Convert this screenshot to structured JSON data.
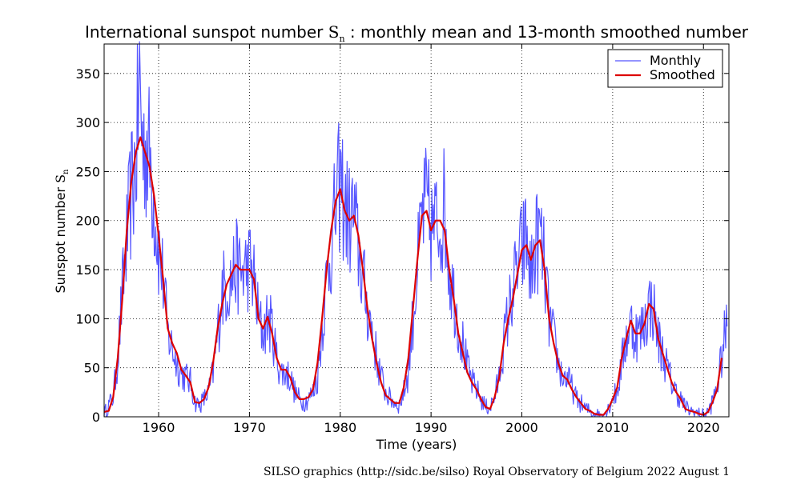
{
  "chart_data": {
    "type": "line",
    "title_main": "International sunspot number ",
    "title_symbol": "S",
    "title_sub": "n",
    "title_rest": " : monthly mean and 13-month smoothed number",
    "xlabel": "Time (years)",
    "ylabel_main": "Sunspot number ",
    "ylabel_symbol": "S",
    "ylabel_sub": "n",
    "xlim": [
      1954,
      2022.8
    ],
    "ylim": [
      0,
      380
    ],
    "xticks": [
      1960,
      1970,
      1980,
      1990,
      2000,
      2010,
      2020
    ],
    "yticks": [
      0,
      50,
      100,
      150,
      200,
      250,
      300,
      350
    ],
    "grid": true,
    "legend_position": "top-right",
    "series": [
      {
        "name": "Monthly",
        "color": "#5555ff",
        "style": "thin-line",
        "knots": [
          [
            1954.0,
            3
          ],
          [
            1954.5,
            12
          ],
          [
            1955.0,
            20
          ],
          [
            1955.5,
            60
          ],
          [
            1956.0,
            125
          ],
          [
            1956.5,
            180
          ],
          [
            1957.0,
            230
          ],
          [
            1957.5,
            260
          ],
          [
            1957.9,
            340
          ],
          [
            1958.3,
            270
          ],
          [
            1958.7,
            280
          ],
          [
            1959.2,
            250
          ],
          [
            1959.6,
            210
          ],
          [
            1960.0,
            170
          ],
          [
            1960.5,
            140
          ],
          [
            1961.0,
            85
          ],
          [
            1961.5,
            70
          ],
          [
            1962.0,
            55
          ],
          [
            1962.5,
            45
          ],
          [
            1963.0,
            40
          ],
          [
            1963.5,
            35
          ],
          [
            1964.0,
            15
          ],
          [
            1964.5,
            12
          ],
          [
            1965.0,
            18
          ],
          [
            1965.5,
            25
          ],
          [
            1966.0,
            45
          ],
          [
            1966.5,
            85
          ],
          [
            1967.0,
            130
          ],
          [
            1967.5,
            135
          ],
          [
            1968.0,
            140
          ],
          [
            1968.5,
            155
          ],
          [
            1969.0,
            145
          ],
          [
            1969.5,
            150
          ],
          [
            1970.0,
            155
          ],
          [
            1970.5,
            140
          ],
          [
            1971.0,
            100
          ],
          [
            1971.5,
            85
          ],
          [
            1972.0,
            100
          ],
          [
            1972.5,
            90
          ],
          [
            1973.0,
            60
          ],
          [
            1973.5,
            45
          ],
          [
            1974.0,
            45
          ],
          [
            1974.5,
            40
          ],
          [
            1975.0,
            25
          ],
          [
            1975.5,
            18
          ],
          [
            1976.0,
            15
          ],
          [
            1976.5,
            18
          ],
          [
            1977.0,
            25
          ],
          [
            1977.5,
            40
          ],
          [
            1978.0,
            90
          ],
          [
            1978.5,
            140
          ],
          [
            1979.0,
            175
          ],
          [
            1979.5,
            210
          ],
          [
            1980.0,
            240
          ],
          [
            1980.5,
            215
          ],
          [
            1981.0,
            200
          ],
          [
            1981.5,
            205
          ],
          [
            1982.0,
            170
          ],
          [
            1982.5,
            140
          ],
          [
            1983.0,
            110
          ],
          [
            1983.5,
            90
          ],
          [
            1984.0,
            60
          ],
          [
            1984.5,
            40
          ],
          [
            1985.0,
            25
          ],
          [
            1985.5,
            18
          ],
          [
            1986.0,
            15
          ],
          [
            1986.5,
            12
          ],
          [
            1987.0,
            25
          ],
          [
            1987.5,
            45
          ],
          [
            1988.0,
            100
          ],
          [
            1988.5,
            150
          ],
          [
            1989.0,
            205
          ],
          [
            1989.5,
            215
          ],
          [
            1990.0,
            190
          ],
          [
            1990.5,
            195
          ],
          [
            1991.0,
            200
          ],
          [
            1991.5,
            215
          ],
          [
            1992.0,
            150
          ],
          [
            1992.5,
            125
          ],
          [
            1993.0,
            95
          ],
          [
            1993.5,
            75
          ],
          [
            1994.0,
            50
          ],
          [
            1994.5,
            35
          ],
          [
            1995.0,
            28
          ],
          [
            1995.5,
            18
          ],
          [
            1996.0,
            10
          ],
          [
            1996.5,
            10
          ],
          [
            1997.0,
            20
          ],
          [
            1997.5,
            40
          ],
          [
            1998.0,
            75
          ],
          [
            1998.5,
            105
          ],
          [
            1999.0,
            130
          ],
          [
            1999.5,
            150
          ],
          [
            2000.0,
            170
          ],
          [
            2000.5,
            180
          ],
          [
            2001.0,
            140
          ],
          [
            2001.5,
            175
          ],
          [
            2002.0,
            185
          ],
          [
            2002.5,
            150
          ],
          [
            2003.0,
            100
          ],
          [
            2003.5,
            80
          ],
          [
            2004.0,
            55
          ],
          [
            2004.5,
            40
          ],
          [
            2005.0,
            40
          ],
          [
            2005.5,
            30
          ],
          [
            2006.0,
            18
          ],
          [
            2006.5,
            14
          ],
          [
            2007.0,
            8
          ],
          [
            2007.5,
            6
          ],
          [
            2008.0,
            3
          ],
          [
            2008.5,
            2
          ],
          [
            2009.0,
            2
          ],
          [
            2009.5,
            8
          ],
          [
            2010.0,
            20
          ],
          [
            2010.5,
            25
          ],
          [
            2011.0,
            55
          ],
          [
            2011.5,
            80
          ],
          [
            2012.0,
            95
          ],
          [
            2012.5,
            85
          ],
          [
            2013.0,
            85
          ],
          [
            2013.5,
            95
          ],
          [
            2014.0,
            115
          ],
          [
            2014.5,
            110
          ],
          [
            2015.0,
            80
          ],
          [
            2015.5,
            65
          ],
          [
            2016.0,
            50
          ],
          [
            2016.5,
            35
          ],
          [
            2017.0,
            25
          ],
          [
            2017.5,
            18
          ],
          [
            2018.0,
            10
          ],
          [
            2018.5,
            6
          ],
          [
            2019.0,
            5
          ],
          [
            2019.5,
            3
          ],
          [
            2020.0,
            2
          ],
          [
            2020.5,
            5
          ],
          [
            2021.0,
            15
          ],
          [
            2021.5,
            30
          ],
          [
            2022.0,
            60
          ],
          [
            2022.3,
            80
          ],
          [
            2022.6,
            92
          ]
        ]
      },
      {
        "name": "Smoothed",
        "color": "#dd0000",
        "style": "thick-line",
        "points": [
          [
            1954.0,
            5
          ],
          [
            1954.5,
            6
          ],
          [
            1955.0,
            20
          ],
          [
            1955.5,
            60
          ],
          [
            1956.0,
            120
          ],
          [
            1956.5,
            190
          ],
          [
            1957.0,
            240
          ],
          [
            1957.5,
            270
          ],
          [
            1958.0,
            285
          ],
          [
            1958.5,
            270
          ],
          [
            1959.0,
            255
          ],
          [
            1959.5,
            225
          ],
          [
            1960.0,
            185
          ],
          [
            1960.5,
            140
          ],
          [
            1961.0,
            90
          ],
          [
            1961.5,
            75
          ],
          [
            1962.0,
            65
          ],
          [
            1962.5,
            48
          ],
          [
            1963.0,
            42
          ],
          [
            1963.5,
            35
          ],
          [
            1964.0,
            15
          ],
          [
            1964.5,
            14
          ],
          [
            1965.0,
            18
          ],
          [
            1965.5,
            30
          ],
          [
            1966.0,
            55
          ],
          [
            1966.5,
            90
          ],
          [
            1967.0,
            115
          ],
          [
            1967.5,
            135
          ],
          [
            1968.0,
            145
          ],
          [
            1968.5,
            155
          ],
          [
            1969.0,
            150
          ],
          [
            1969.5,
            150
          ],
          [
            1970.0,
            150
          ],
          [
            1970.5,
            140
          ],
          [
            1971.0,
            100
          ],
          [
            1971.5,
            90
          ],
          [
            1972.0,
            102
          ],
          [
            1972.5,
            85
          ],
          [
            1973.0,
            60
          ],
          [
            1973.5,
            48
          ],
          [
            1974.0,
            48
          ],
          [
            1974.5,
            40
          ],
          [
            1975.0,
            25
          ],
          [
            1975.5,
            18
          ],
          [
            1976.0,
            18
          ],
          [
            1976.5,
            20
          ],
          [
            1977.0,
            28
          ],
          [
            1977.5,
            55
          ],
          [
            1978.0,
            100
          ],
          [
            1978.5,
            150
          ],
          [
            1979.0,
            190
          ],
          [
            1979.5,
            220
          ],
          [
            1980.0,
            232
          ],
          [
            1980.5,
            210
          ],
          [
            1981.0,
            200
          ],
          [
            1981.5,
            205
          ],
          [
            1982.0,
            185
          ],
          [
            1982.5,
            150
          ],
          [
            1983.0,
            110
          ],
          [
            1983.5,
            80
          ],
          [
            1984.0,
            55
          ],
          [
            1984.5,
            35
          ],
          [
            1985.0,
            22
          ],
          [
            1985.5,
            18
          ],
          [
            1986.0,
            14
          ],
          [
            1986.5,
            14
          ],
          [
            1987.0,
            30
          ],
          [
            1987.5,
            60
          ],
          [
            1988.0,
            110
          ],
          [
            1988.5,
            160
          ],
          [
            1989.0,
            205
          ],
          [
            1989.5,
            210
          ],
          [
            1990.0,
            190
          ],
          [
            1990.5,
            200
          ],
          [
            1991.0,
            200
          ],
          [
            1991.5,
            190
          ],
          [
            1992.0,
            150
          ],
          [
            1992.5,
            120
          ],
          [
            1993.0,
            85
          ],
          [
            1993.5,
            65
          ],
          [
            1994.0,
            45
          ],
          [
            1994.5,
            35
          ],
          [
            1995.0,
            28
          ],
          [
            1995.5,
            18
          ],
          [
            1996.0,
            10
          ],
          [
            1996.5,
            8
          ],
          [
            1997.0,
            20
          ],
          [
            1997.5,
            40
          ],
          [
            1998.0,
            75
          ],
          [
            1998.5,
            100
          ],
          [
            1999.0,
            120
          ],
          [
            1999.5,
            145
          ],
          [
            2000.0,
            170
          ],
          [
            2000.5,
            175
          ],
          [
            2001.0,
            160
          ],
          [
            2001.5,
            175
          ],
          [
            2002.0,
            180
          ],
          [
            2002.5,
            150
          ],
          [
            2003.0,
            100
          ],
          [
            2003.5,
            75
          ],
          [
            2004.0,
            55
          ],
          [
            2004.5,
            42
          ],
          [
            2005.0,
            38
          ],
          [
            2005.5,
            28
          ],
          [
            2006.0,
            20
          ],
          [
            2006.5,
            14
          ],
          [
            2007.0,
            8
          ],
          [
            2007.5,
            6
          ],
          [
            2008.0,
            3
          ],
          [
            2008.5,
            2
          ],
          [
            2009.0,
            2
          ],
          [
            2009.5,
            8
          ],
          [
            2010.0,
            18
          ],
          [
            2010.5,
            30
          ],
          [
            2011.0,
            60
          ],
          [
            2011.5,
            80
          ],
          [
            2012.0,
            98
          ],
          [
            2012.5,
            85
          ],
          [
            2013.0,
            85
          ],
          [
            2013.5,
            95
          ],
          [
            2014.0,
            115
          ],
          [
            2014.5,
            110
          ],
          [
            2015.0,
            80
          ],
          [
            2015.5,
            65
          ],
          [
            2016.0,
            50
          ],
          [
            2016.5,
            35
          ],
          [
            2017.0,
            25
          ],
          [
            2017.5,
            18
          ],
          [
            2018.0,
            8
          ],
          [
            2018.5,
            6
          ],
          [
            2019.0,
            5
          ],
          [
            2019.5,
            3
          ],
          [
            2020.0,
            2
          ],
          [
            2020.5,
            5
          ],
          [
            2021.0,
            15
          ],
          [
            2021.5,
            28
          ],
          [
            2022.0,
            60
          ]
        ]
      }
    ]
  },
  "credit": "SILSO graphics (http://sidc.be/silso)  Royal Observatory of Belgium  2022 August 1"
}
